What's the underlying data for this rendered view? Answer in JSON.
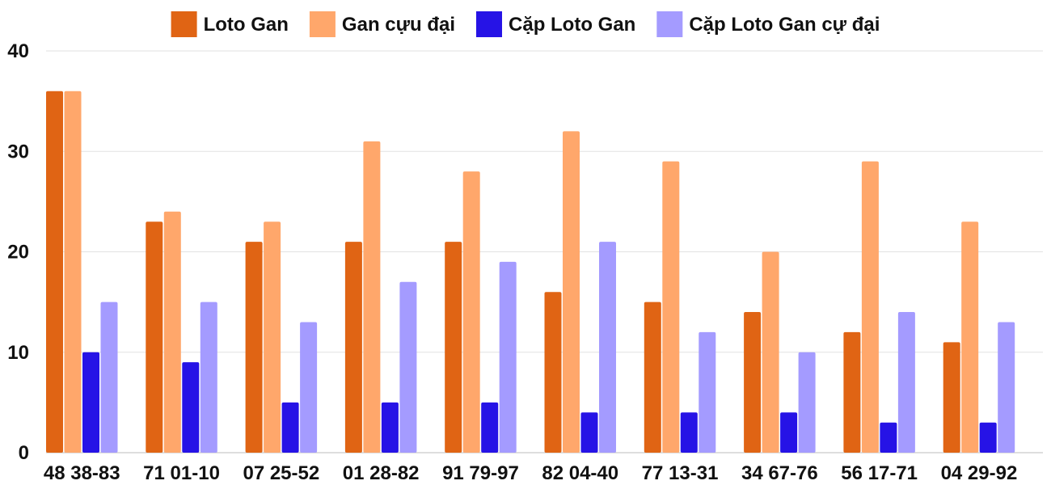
{
  "chart_data": {
    "type": "bar",
    "title": "",
    "xlabel": "",
    "ylabel": "",
    "ylim": [
      0,
      40
    ],
    "yticks": [
      0,
      10,
      20,
      30,
      40
    ],
    "grid": true,
    "legend_position": "top-center",
    "categories": [
      "48 38-83",
      "71 01-10",
      "07 25-52",
      "01 28-82",
      "91 79-97",
      "82 04-40",
      "77 13-31",
      "34 67-76",
      "56 17-71",
      "04 29-92"
    ],
    "series": [
      {
        "name": "Loto Gan",
        "color": "#e06414",
        "values": [
          36,
          23,
          21,
          21,
          21,
          16,
          15,
          14,
          12,
          11
        ]
      },
      {
        "name": "Gan cựu đại",
        "color": "#ffa76b",
        "values": [
          36,
          24,
          23,
          31,
          28,
          32,
          29,
          20,
          29,
          23
        ]
      },
      {
        "name": "Cặp Loto Gan",
        "color": "#2613e6",
        "values": [
          10,
          9,
          5,
          5,
          5,
          4,
          4,
          4,
          3,
          3
        ]
      },
      {
        "name": "Cặp Loto Gan cự đại",
        "color": "#a49bff",
        "values": [
          15,
          15,
          13,
          17,
          19,
          21,
          12,
          10,
          14,
          13
        ]
      }
    ]
  }
}
